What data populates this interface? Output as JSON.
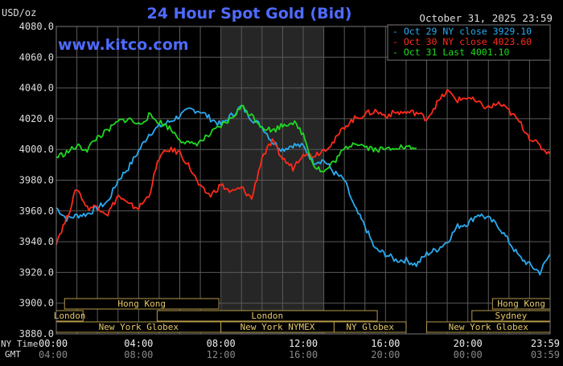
{
  "chart_data": {
    "type": "line",
    "title": "24 Hour Spot Gold (Bid)",
    "units_label": "USD/oz",
    "date": "October 31, 2025 23:59",
    "watermark": "www.kitco.com",
    "ylim": [
      3880,
      4080
    ],
    "yticks": [
      "4080.0",
      "4060.0",
      "4040.0",
      "4020.0",
      "4000.0",
      "3980.0",
      "3960.0",
      "3940.0",
      "3920.0",
      "3900.0",
      "3880.0"
    ],
    "xlim": [
      0,
      24
    ],
    "x_unit": "hours (NY time)",
    "xticks_ny": [
      "00:00",
      "04:00",
      "08:00",
      "12:00",
      "16:00",
      "20:00",
      "23:59"
    ],
    "xticks_gmt": [
      "04:00",
      "08:00",
      "12:00",
      "16:00",
      "20:00",
      "00:00",
      "03:59"
    ],
    "x_row_labels": [
      "NY Time",
      "GMT"
    ],
    "shaded_region": [
      8,
      13
    ],
    "grid": true,
    "legend_position": "top-right",
    "series": [
      {
        "name": "Oct 29 NY close 3929.10",
        "color": "#29aaf0",
        "x": [
          0,
          0.5,
          1,
          1.5,
          2,
          2.5,
          3,
          3.5,
          4,
          4.5,
          5,
          5.5,
          6,
          6.5,
          7,
          7.5,
          8,
          8.5,
          9,
          9.5,
          10,
          10.5,
          11,
          11.5,
          12,
          12.5,
          13,
          13.5,
          14,
          14.5,
          15,
          15.5,
          16,
          16.5,
          17,
          17.5,
          18,
          18.5,
          19,
          19.5,
          20,
          20.5,
          21,
          21.5,
          22,
          22.5,
          23,
          23.5,
          24
        ],
        "values": [
          3962,
          3955,
          3957,
          3958,
          3962,
          3966,
          3980,
          3988,
          3999,
          4010,
          4015,
          4018,
          4022,
          4026,
          4025,
          4020,
          4016,
          4022,
          4028,
          4020,
          4015,
          4005,
          4000,
          4003,
          4002,
          3992,
          3993,
          3985,
          3980,
          3962,
          3950,
          3935,
          3932,
          3928,
          3928,
          3925,
          3932,
          3935,
          3940,
          3950,
          3952,
          3958,
          3955,
          3950,
          3940,
          3930,
          3925,
          3920,
          3932
        ]
      },
      {
        "name": "Oct 30 NY close 4023.60",
        "color": "#ff2a1a",
        "x": [
          0,
          0.5,
          1,
          1.5,
          2,
          2.5,
          3,
          3.5,
          4,
          4.5,
          5,
          5.5,
          6,
          6.5,
          7,
          7.5,
          8,
          8.5,
          9,
          9.5,
          10,
          10.5,
          11,
          11.5,
          12,
          12.5,
          13,
          13.5,
          14,
          14.5,
          15,
          15.5,
          16,
          16.5,
          17,
          17.5,
          18,
          18.5,
          19,
          19.5,
          20,
          20.5,
          21,
          21.5,
          22,
          22.5,
          23,
          23.5,
          24
        ],
        "values": [
          3940,
          3955,
          3975,
          3962,
          3963,
          3958,
          3970,
          3964,
          3962,
          3970,
          3995,
          4000,
          3998,
          3988,
          3975,
          3970,
          3977,
          3972,
          3975,
          3968,
          3995,
          4005,
          3994,
          3988,
          3998,
          3996,
          4000,
          4005,
          4015,
          4020,
          4023,
          4025,
          4022,
          4024,
          4024,
          4024,
          4020,
          4030,
          4038,
          4032,
          4034,
          4030,
          4027,
          4030,
          4025,
          4018,
          4008,
          4002,
          3997
        ]
      },
      {
        "name": "Oct 31 Last 4001.10",
        "color": "#1fd81f",
        "x": [
          0,
          0.5,
          1,
          1.5,
          2,
          2.5,
          3,
          3.5,
          4,
          4.5,
          5,
          5.5,
          6,
          6.5,
          7,
          7.5,
          8,
          8.5,
          9,
          9.5,
          10,
          10.5,
          11,
          11.5,
          12,
          12.5,
          13,
          13.5,
          14,
          14.5,
          15,
          15.5,
          16,
          16.5,
          17,
          17.5
        ],
        "values": [
          3995,
          3998,
          4002,
          4000,
          4008,
          4012,
          4018,
          4020,
          4016,
          4022,
          4018,
          4014,
          4007,
          4003,
          4005,
          4010,
          4015,
          4020,
          4028,
          4022,
          4015,
          4012,
          4016,
          4018,
          4010,
          3990,
          3985,
          3992,
          4000,
          4005,
          4002,
          4000,
          4000,
          4002,
          4001,
          4001
        ]
      }
    ],
    "session_bars": [
      {
        "label": "Hong Kong",
        "row": 0,
        "start": 0.4,
        "end": 7.9
      },
      {
        "label": "Hong Kong",
        "row": 0,
        "start": 21.2,
        "end": 24
      },
      {
        "label": "London",
        "row": 1,
        "start": 0,
        "end": 1.3
      },
      {
        "label": "London",
        "row": 1,
        "start": 4.9,
        "end": 15.6
      },
      {
        "label": "Sydney",
        "row": 1,
        "start": 20.2,
        "end": 24
      },
      {
        "label": "New York Globex",
        "row": 2,
        "start": 0,
        "end": 8.0
      },
      {
        "label": "New York NYMEX",
        "row": 2,
        "start": 8.0,
        "end": 13.5
      },
      {
        "label": "NY Globex",
        "row": 2,
        "start": 13.5,
        "end": 17.0
      },
      {
        "label": "New York Globex",
        "row": 2,
        "start": 18.0,
        "end": 24
      }
    ]
  }
}
